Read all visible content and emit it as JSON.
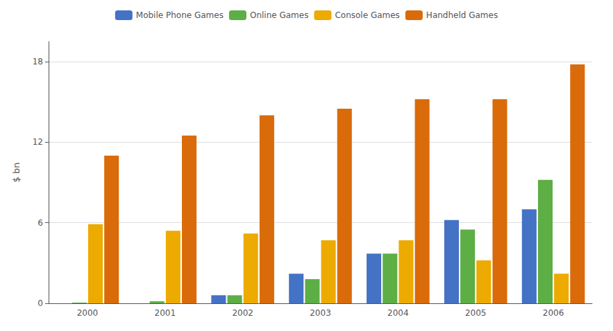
{
  "chart_data": {
    "type": "bar",
    "categories": [
      "2000",
      "2001",
      "2002",
      "2003",
      "2004",
      "2005",
      "2006"
    ],
    "series": [
      {
        "name": "Mobile Phone Games",
        "color": "#4472C4",
        "values": [
          0.0,
          0.0,
          0.6,
          2.2,
          3.7,
          6.2,
          7.0
        ]
      },
      {
        "name": "Online Games",
        "color": "#5DAE45",
        "values": [
          0.05,
          0.15,
          0.6,
          1.8,
          3.7,
          5.5,
          9.2
        ]
      },
      {
        "name": "Console Games",
        "color": "#EDAA00",
        "values": [
          5.9,
          5.4,
          5.2,
          4.7,
          4.7,
          3.2,
          2.2
        ]
      },
      {
        "name": "Handheld Games",
        "color": "#D96B0A",
        "values": [
          11.0,
          12.5,
          14.0,
          14.5,
          15.2,
          15.2,
          17.8
        ]
      }
    ],
    "ylabel": "$ bn",
    "ylim": [
      0,
      19.5
    ],
    "yticks": [
      0,
      6,
      12,
      18
    ],
    "grid": true,
    "legend": "top"
  }
}
